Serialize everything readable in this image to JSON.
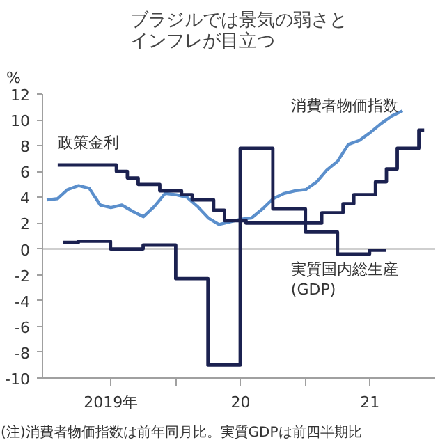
{
  "chart_data": {
    "type": "step",
    "title": "ブラジルでは景気の弱さとインフレが目立つ",
    "ylabel": "%",
    "annotations": [
      "(注)消費者物価指数は前年同月比。実質GDPは前四半期比"
    ],
    "xlim": [
      "2018-12-20",
      "2022-01-01"
    ],
    "xticks": [
      {
        "value": "2019-07-01",
        "label": "2019年"
      },
      {
        "value": "2020-01-01",
        "label": null
      },
      {
        "value": "2020-07-01",
        "label": "20"
      },
      {
        "value": "2021-01-01",
        "label": null
      },
      {
        "value": "2021-07-01",
        "label": "21"
      }
    ],
    "ylim": [
      -10,
      12
    ],
    "yticks": [
      -10,
      -8,
      -6,
      -4,
      -2,
      0,
      2,
      4,
      6,
      8,
      10,
      12
    ],
    "grid": false,
    "ref_lines": [
      {
        "axis": "y",
        "value": 0,
        "color": "#a0a0a0"
      }
    ],
    "series": [
      {
        "name": "消費者物価指数",
        "type": "line",
        "color": "#5b8fcc",
        "x": [
          "2019-01",
          "2019-02",
          "2019-03",
          "2019-04",
          "2019-05",
          "2019-06",
          "2019-07",
          "2019-08",
          "2019-09",
          "2019-10",
          "2019-11",
          "2019-12",
          "2020-01",
          "2020-02",
          "2020-03",
          "2020-04",
          "2020-05",
          "2020-06",
          "2020-07",
          "2020-08",
          "2020-09",
          "2020-10",
          "2020-11",
          "2020-12",
          "2021-01",
          "2021-02",
          "2021-03",
          "2021-04",
          "2021-05",
          "2021-06",
          "2021-07",
          "2021-08",
          "2021-09",
          "2021-10"
        ],
        "values": [
          3.8,
          3.9,
          4.6,
          4.9,
          4.7,
          3.4,
          3.2,
          3.4,
          2.9,
          2.5,
          3.3,
          4.3,
          4.2,
          4.0,
          3.3,
          2.4,
          1.9,
          2.1,
          2.3,
          2.4,
          3.1,
          3.9,
          4.3,
          4.5,
          4.6,
          5.2,
          6.1,
          6.8,
          8.1,
          8.4,
          9.0,
          9.7,
          10.3,
          10.7
        ]
      },
      {
        "name": "政策金利",
        "color": "#1b2150",
        "x": [
          "2019-02",
          "2019-03",
          "2019-04",
          "2019-05",
          "2019-06",
          "2019-07",
          "2019-08",
          "2019-09",
          "2019-10",
          "2019-11",
          "2019-12",
          "2020-01",
          "2020-02",
          "2020-03",
          "2020-04",
          "2020-05",
          "2020-06",
          "2020-07",
          "2020-08",
          "2020-09",
          "2020-10",
          "2020-11",
          "2020-12",
          "2021-01",
          "2021-02",
          "2021-03",
          "2021-04",
          "2021-05",
          "2021-06",
          "2021-07",
          "2021-08",
          "2021-09",
          "2021-10",
          "2021-11",
          "2021-12"
        ],
        "values": [
          6.5,
          6.5,
          6.5,
          6.5,
          6.5,
          6.5,
          6.0,
          5.5,
          5.0,
          5.0,
          4.5,
          4.5,
          4.2,
          3.8,
          3.8,
          3.0,
          2.2,
          2.2,
          2.0,
          2.0,
          2.0,
          2.0,
          2.0,
          2.0,
          2.0,
          2.8,
          2.8,
          3.5,
          4.2,
          4.2,
          5.2,
          6.2,
          7.8,
          7.8,
          9.2
        ]
      },
      {
        "name": "実質国内総生産(GDP)",
        "color": "#1b2150",
        "x": [
          "2019-02-15",
          "2019-05-15",
          "2019-08-15",
          "2019-11-15",
          "2020-02-15",
          "2020-05-15",
          "2020-08-15",
          "2020-11-15",
          "2021-02-15",
          "2021-05-15",
          "2021-08-15"
        ],
        "values": [
          0.5,
          0.6,
          0.0,
          0.3,
          -2.3,
          -9.0,
          7.8,
          3.1,
          1.3,
          -0.4,
          -0.1
        ]
      }
    ]
  }
}
